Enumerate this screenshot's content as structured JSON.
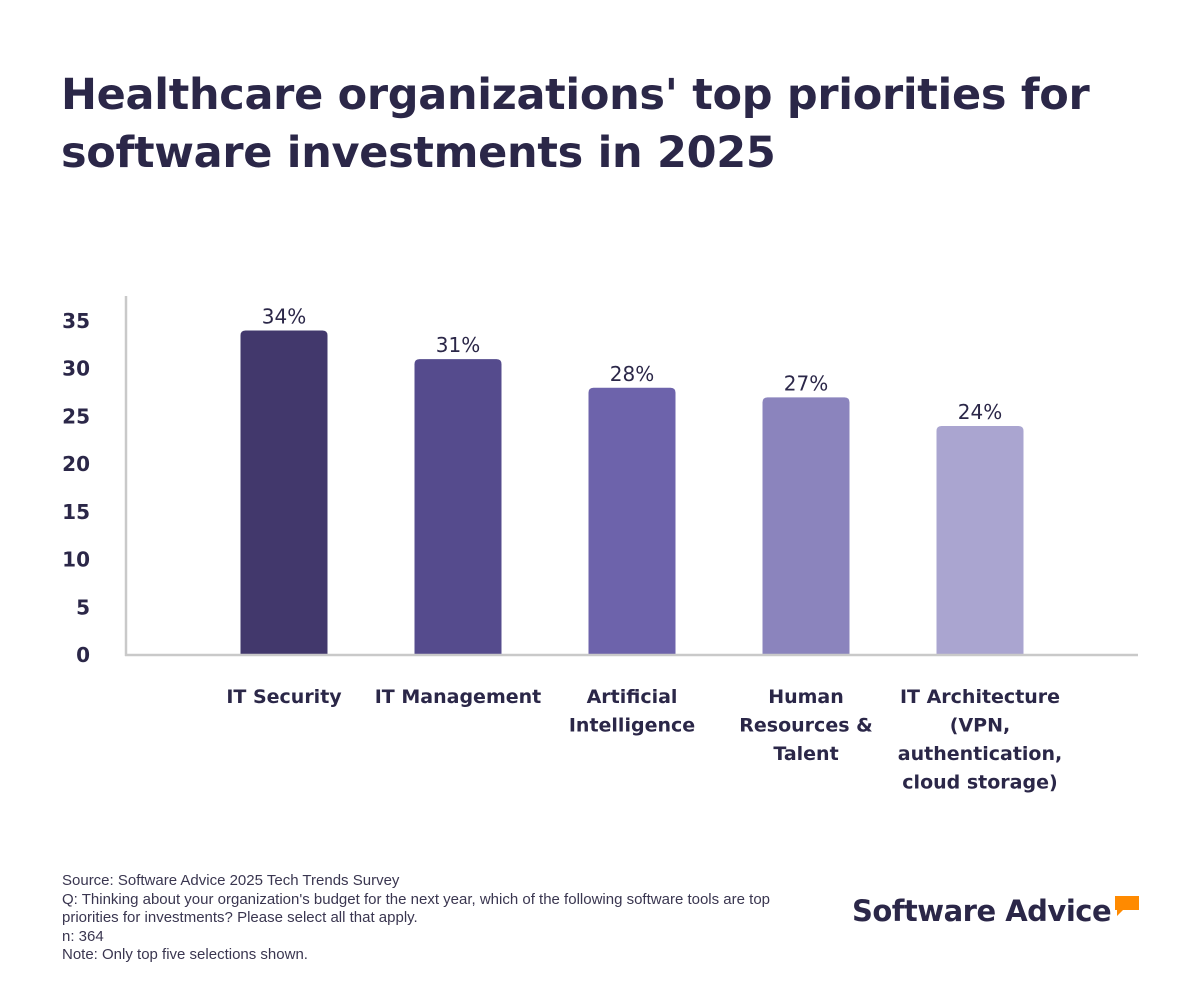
{
  "header": {
    "title": "Healthcare organizations' top priorities for software investments in 2025"
  },
  "chart_data": {
    "type": "bar",
    "title": "Healthcare organizations' top priorities for software investments in 2025",
    "xlabel": "",
    "ylabel": "",
    "ylim": [
      0,
      37
    ],
    "yticks": [
      0,
      5,
      10,
      15,
      20,
      25,
      30,
      35
    ],
    "grid": false,
    "legend": "none",
    "categories": [
      [
        "IT Security"
      ],
      [
        "IT Management"
      ],
      [
        "Artificial",
        "Intelligence"
      ],
      [
        "Human",
        "Resources &",
        "Talent"
      ],
      [
        "IT Architecture",
        "(VPN,",
        "authentication,",
        "cloud storage)"
      ]
    ],
    "values": [
      34,
      31,
      28,
      27,
      24
    ],
    "value_labels": [
      "34%",
      "31%",
      "28%",
      "27%",
      "24%"
    ],
    "bar_colors": [
      "#42386c",
      "#554b8d",
      "#6d63ab",
      "#8b84bd",
      "#aaa5d0"
    ]
  },
  "footer": {
    "source": "Source: Software Advice 2025 Tech Trends Survey",
    "question": "Q: Thinking about your organization's budget for the next year, which of the following software tools are top priorities for investments? Please select all that apply.",
    "n": "n: 364",
    "note": "Note: Only top five selections shown."
  },
  "brand": {
    "name": "Software Advice",
    "icon": "speech-bubble-icon",
    "accent_color": "#ff8a00",
    "text_color": "#2b2748"
  }
}
